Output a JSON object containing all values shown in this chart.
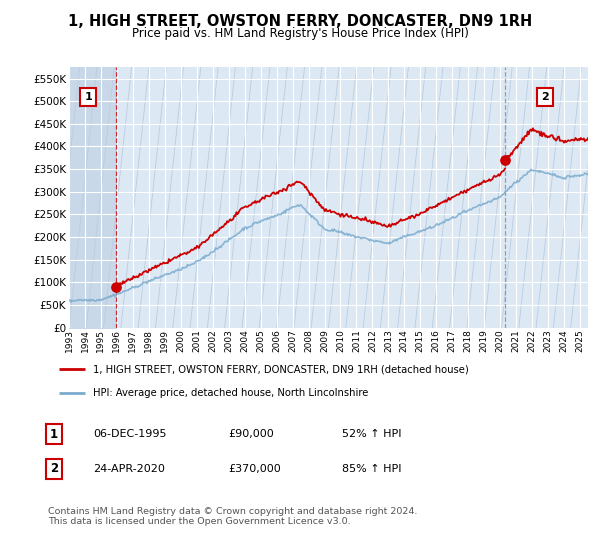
{
  "title": "1, HIGH STREET, OWSTON FERRY, DONCASTER, DN9 1RH",
  "subtitle": "Price paid vs. HM Land Registry's House Price Index (HPI)",
  "legend_line1": "1, HIGH STREET, OWSTON FERRY, DONCASTER, DN9 1RH (detached house)",
  "legend_line2": "HPI: Average price, detached house, North Lincolnshire",
  "annotation1_date": "06-DEC-1995",
  "annotation1_price": "£90,000",
  "annotation1_hpi": "52% ↑ HPI",
  "annotation2_date": "24-APR-2020",
  "annotation2_price": "£370,000",
  "annotation2_hpi": "85% ↑ HPI",
  "footer": "Contains HM Land Registry data © Crown copyright and database right 2024.\nThis data is licensed under the Open Government Licence v3.0.",
  "property_color": "#cc0000",
  "hpi_color": "#7aaacc",
  "ylim": [
    0,
    575000
  ],
  "yticks": [
    0,
    50000,
    100000,
    150000,
    200000,
    250000,
    300000,
    350000,
    400000,
    450000,
    500000,
    550000
  ],
  "sale1_x": 1995.92,
  "sale1_y": 90000,
  "sale2_x": 2020.31,
  "sale2_y": 370000,
  "xmin": 1993,
  "xmax": 2025.5,
  "plot_bg": "#dce9f5",
  "hatch_bg": "#c8d8e8"
}
